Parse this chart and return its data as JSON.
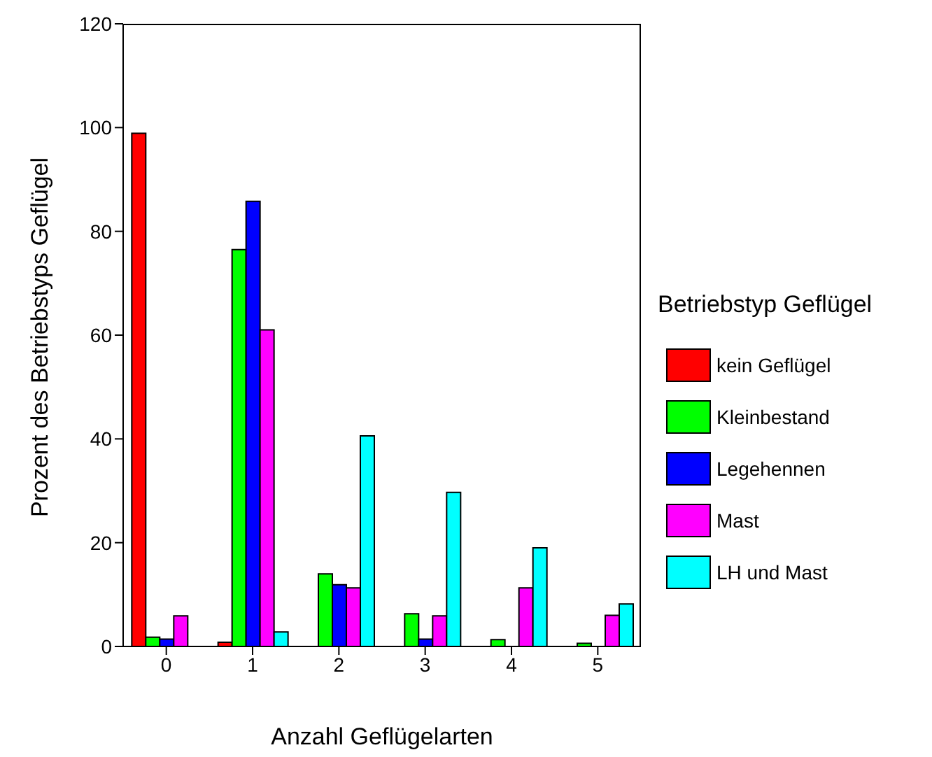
{
  "chart_data": {
    "type": "bar",
    "xlabel": "Anzahl Geflügelarten",
    "ylabel": "Prozent des Betriebstyps Geflügel",
    "legend_title": "Betriebstyp Geflügel",
    "categories": [
      "0",
      "1",
      "2",
      "3",
      "4",
      "5"
    ],
    "series": [
      {
        "name": "kein Geflügel",
        "color": "#ff0000",
        "values": [
          98.9,
          0.8,
          0,
          0,
          0,
          0
        ]
      },
      {
        "name": "Kleinbestand",
        "color": "#00ff00",
        "values": [
          1.8,
          76.5,
          14,
          6.3,
          1.3,
          0.6
        ]
      },
      {
        "name": "Legehennen",
        "color": "#0000ff",
        "values": [
          1.4,
          85.8,
          11.9,
          1.4,
          0,
          0
        ]
      },
      {
        "name": "Mast",
        "color": "#ff00ff",
        "values": [
          5.9,
          61,
          11.3,
          5.9,
          11.3,
          6
        ]
      },
      {
        "name": "LH und Mast",
        "color": "#00ffff",
        "values": [
          0,
          2.8,
          40.6,
          29.7,
          19,
          8.2
        ]
      }
    ],
    "ylim": [
      0,
      120
    ],
    "yticks": [
      0,
      20,
      40,
      60,
      80,
      100,
      120
    ],
    "grid": false,
    "legend": "right"
  }
}
